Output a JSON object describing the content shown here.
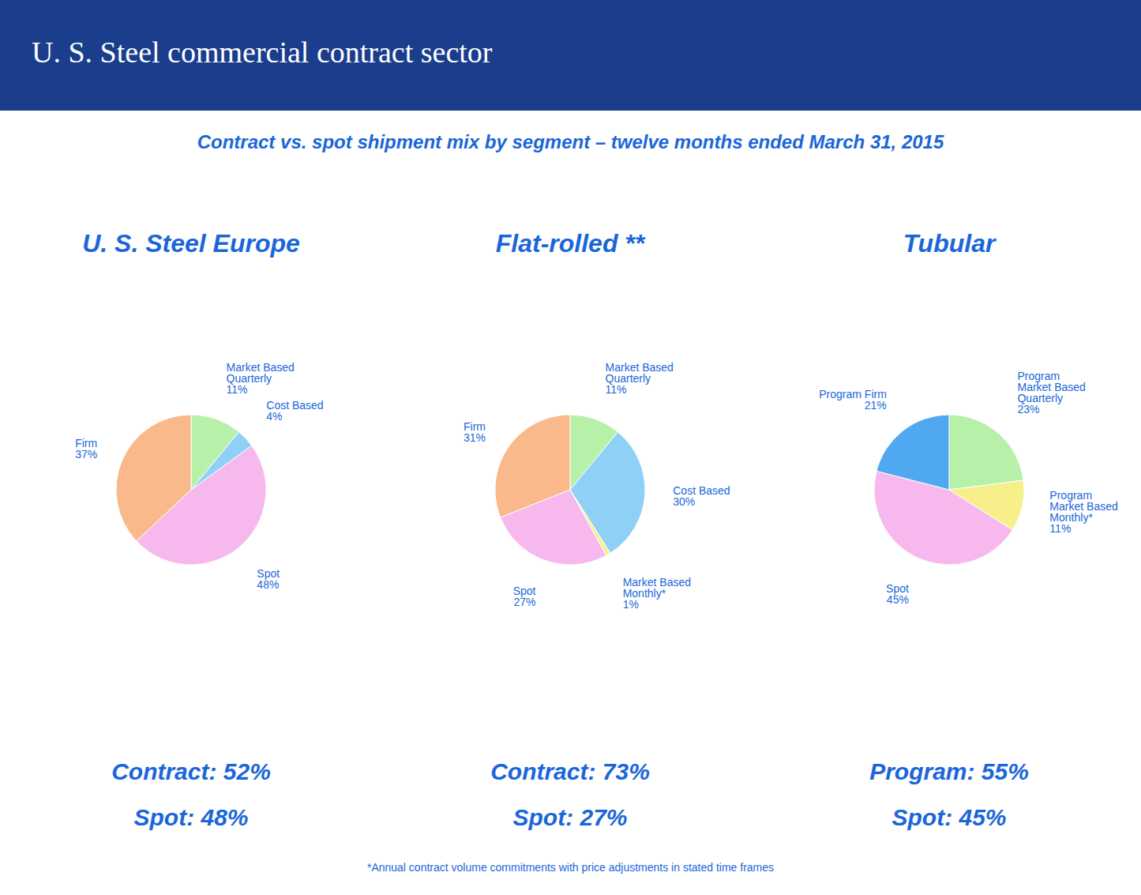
{
  "title": "U. S. Steel commercial contract sector",
  "subtitle": "Contract vs. spot shipment mix by segment – twelve months ended March 31, 2015",
  "footnote": "*Annual contract volume commitments with price adjustments in stated time frames",
  "chart_data": [
    {
      "type": "pie",
      "title": "U. S. Steel Europe",
      "categories": [
        "Market Based Quarterly",
        "Cost Based",
        "Spot",
        "Firm"
      ],
      "values": [
        11,
        4,
        48,
        37
      ],
      "value_labels": [
        "11%",
        "4%",
        "48%",
        "37%"
      ],
      "colors": [
        "#b7f0a8",
        "#8fd0f7",
        "#f7b8ee",
        "#f9b98a"
      ],
      "data_labels": true,
      "tick_labels": false,
      "notes": [
        "Contract: 52%",
        "Spot: 48%"
      ]
    },
    {
      "type": "pie",
      "title": "Flat-rolled **",
      "categories": [
        "Market Based Quarterly",
        "Cost Based",
        "Market Based Monthly*",
        "Spot",
        "Firm"
      ],
      "values": [
        11,
        30,
        1,
        27,
        31
      ],
      "value_labels": [
        "11%",
        "30%",
        "1%",
        "27%",
        "31%"
      ],
      "colors": [
        "#b7f0a8",
        "#8fd0f7",
        "#f7ef8a",
        "#f7b8ee",
        "#f9b98a"
      ],
      "data_labels": true,
      "tick_labels": false,
      "notes": [
        "Contract: 73%",
        "Spot: 27%"
      ]
    },
    {
      "type": "pie",
      "title": "Tubular",
      "categories": [
        "Program Market Based Quarterly",
        "Program Market Based Monthly*",
        "Spot",
        "Program Firm"
      ],
      "values": [
        23,
        11,
        45,
        21
      ],
      "value_labels": [
        "23%",
        "11%",
        "45%",
        "21%"
      ],
      "colors": [
        "#b7f0a8",
        "#f7ef8a",
        "#f7b8ee",
        "#4fa8f0"
      ],
      "data_labels": true,
      "tick_labels": false,
      "notes": [
        "Program: 55%",
        "Spot: 45%"
      ]
    }
  ]
}
